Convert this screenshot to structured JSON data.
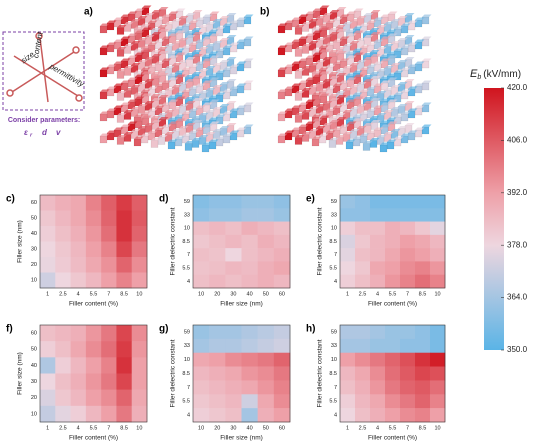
{
  "chart_data": [
    {
      "type": "heatmap",
      "label": "c)",
      "x_label": "Filler content (%)",
      "y_label": "Filler size (nm)",
      "categories": [
        "1",
        "2.5",
        "4",
        "5.5",
        "7",
        "8.5",
        "10"
      ],
      "y_categories": [
        "60",
        "50",
        "40",
        "30",
        "20",
        "10"
      ],
      "values": [
        [
          385,
          388,
          390,
          398,
          405,
          412,
          405
        ],
        [
          382,
          386,
          390,
          396,
          404,
          414,
          406
        ],
        [
          380,
          384,
          388,
          394,
          402,
          414,
          404
        ],
        [
          378,
          382,
          386,
          392,
          398,
          410,
          400
        ],
        [
          377,
          381,
          385,
          390,
          395,
          404,
          396
        ],
        [
          372,
          378,
          382,
          386,
          392,
          398,
          392
        ]
      ]
    },
    {
      "type": "heatmap",
      "label": "d)",
      "x_label": "Filler size (nm)",
      "y_label": "Filler dielectric constant",
      "categories": [
        "10",
        "20",
        "30",
        "40",
        "50",
        "60"
      ],
      "y_categories": [
        "59",
        "33",
        "10",
        "8.5",
        "7",
        "5.5",
        "4"
      ],
      "values": [
        [
          358,
          360,
          360,
          362,
          362,
          360
        ],
        [
          360,
          362,
          362,
          364,
          364,
          362
        ],
        [
          384,
          386,
          384,
          388,
          386,
          384
        ],
        [
          382,
          384,
          386,
          384,
          388,
          386
        ],
        [
          384,
          383,
          378,
          384,
          386,
          388
        ],
        [
          383,
          384,
          386,
          385,
          388,
          390
        ],
        [
          384,
          386,
          384,
          386,
          388,
          386
        ]
      ]
    },
    {
      "type": "heatmap",
      "label": "e)",
      "x_label": "Filler content (%)",
      "y_label": "Filler dielectric constant",
      "categories": [
        "1",
        "2.5",
        "4",
        "5.5",
        "7",
        "8.5",
        "10"
      ],
      "y_categories": [
        "59",
        "33",
        "10",
        "8.5",
        "7",
        "5.5",
        "4"
      ],
      "values": [
        [
          362,
          360,
          356,
          356,
          356,
          356,
          356
        ],
        [
          360,
          360,
          358,
          358,
          358,
          358,
          358
        ],
        [
          380,
          384,
          384,
          388,
          386,
          382,
          376
        ],
        [
          374,
          382,
          386,
          388,
          392,
          390,
          386
        ],
        [
          376,
          384,
          386,
          390,
          394,
          392,
          388
        ],
        [
          378,
          382,
          390,
          392,
          396,
          398,
          394
        ],
        [
          380,
          384,
          388,
          394,
          398,
          402,
          398
        ]
      ]
    },
    {
      "type": "heatmap",
      "label": "f)",
      "x_label": "Filler content (%)",
      "y_label": "Filler size (nm)",
      "categories": [
        "1",
        "2.5",
        "4",
        "5.5",
        "7",
        "8.5",
        "10"
      ],
      "y_categories": [
        "60",
        "50",
        "40",
        "30",
        "20",
        "10"
      ],
      "values": [
        [
          384,
          386,
          388,
          394,
          400,
          410,
          396
        ],
        [
          380,
          384,
          390,
          396,
          402,
          412,
          394
        ],
        [
          366,
          380,
          386,
          392,
          398,
          414,
          392
        ],
        [
          378,
          384,
          388,
          394,
          400,
          410,
          392
        ],
        [
          374,
          382,
          386,
          392,
          396,
          404,
          390
        ],
        [
          370,
          376,
          380,
          386,
          392,
          400,
          388
        ]
      ]
    },
    {
      "type": "heatmap",
      "label": "g)",
      "x_label": "Filler size (nm)",
      "y_label": "Filler dielectric constant",
      "categories": [
        "10",
        "20",
        "30",
        "40",
        "50",
        "60"
      ],
      "y_categories": [
        "59",
        "33",
        "10",
        "8.5",
        "7",
        "5.5",
        "4"
      ],
      "values": [
        [
          362,
          364,
          364,
          366,
          368,
          370
        ],
        [
          364,
          366,
          366,
          368,
          370,
          372
        ],
        [
          390,
          392,
          396,
          398,
          400,
          404
        ],
        [
          386,
          388,
          390,
          394,
          396,
          400
        ],
        [
          384,
          386,
          388,
          390,
          394,
          398
        ],
        [
          382,
          384,
          386,
          372,
          390,
          396
        ],
        [
          380,
          382,
          384,
          364,
          388,
          392
        ]
      ]
    },
    {
      "type": "heatmap",
      "label": "h)",
      "x_label": "Filler content (%)",
      "y_label": "Filler dielectric constant",
      "categories": [
        "1",
        "2.5",
        "4",
        "5.5",
        "7",
        "8.5",
        "10"
      ],
      "y_categories": [
        "59",
        "33",
        "10",
        "8.5",
        "7",
        "5.5",
        "4"
      ],
      "values": [
        [
          366,
          366,
          364,
          362,
          362,
          360,
          356
        ],
        [
          364,
          364,
          362,
          362,
          360,
          360,
          356
        ],
        [
          392,
          396,
          400,
          404,
          408,
          414,
          418
        ],
        [
          386,
          390,
          396,
          402,
          406,
          410,
          408
        ],
        [
          384,
          388,
          394,
          400,
          404,
          406,
          402
        ],
        [
          380,
          386,
          390,
          396,
          400,
          404,
          398
        ],
        [
          378,
          384,
          388,
          392,
          396,
          398,
          392
        ]
      ]
    },
    {
      "type": "colorbar",
      "title": "E",
      "title_sub": "b",
      "title_unit": "(kV/mm)",
      "vlim": [
        350,
        420
      ],
      "colorscale": [
        [
          350,
          "#5ab4e6"
        ],
        [
          378,
          "#eed6df"
        ],
        [
          392,
          "#eea0a8"
        ],
        [
          420,
          "#d0141e"
        ]
      ],
      "ticks": [
        {
          "value": 420,
          "label": "420.0"
        },
        {
          "value": 406,
          "label": "406.0"
        },
        {
          "value": 392,
          "label": "392.0"
        },
        {
          "value": 378,
          "label": "378.0"
        },
        {
          "value": 364,
          "label": "364.0"
        },
        {
          "value": 350,
          "label": "350.0"
        }
      ]
    }
  ],
  "panels3d": [
    {
      "label": "a)"
    },
    {
      "label": "b)"
    }
  ],
  "parameters": {
    "words": [
      "content",
      "size",
      "permittivity"
    ],
    "caption": "Consider parameters:",
    "symbols": [
      "ε",
      "r",
      "d",
      "v"
    ]
  }
}
